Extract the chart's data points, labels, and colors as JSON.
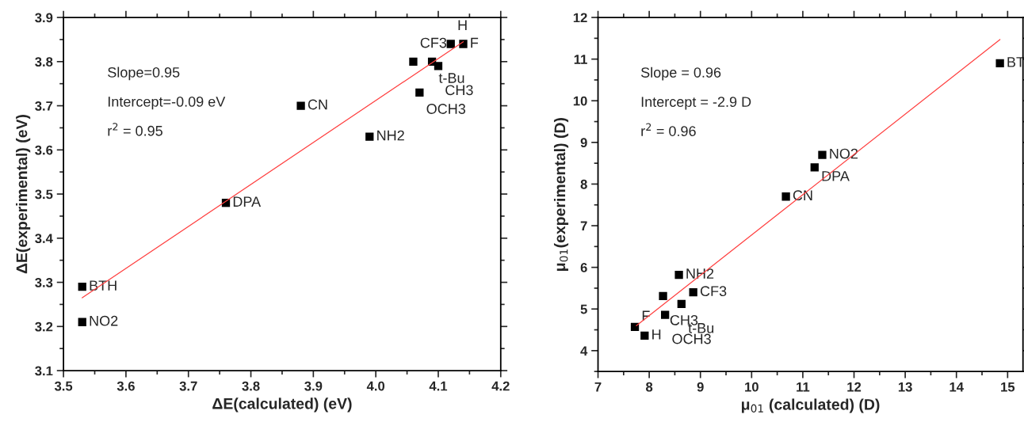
{
  "chart_data": [
    {
      "type": "scatter",
      "xlabel": "ΔE(calculated) (eV)",
      "ylabel": "ΔE(experimental) (eV)",
      "xlim": [
        3.5,
        4.2
      ],
      "ylim": [
        3.1,
        3.9
      ],
      "xticks": [
        3.5,
        3.6,
        3.7,
        3.8,
        3.9,
        {
          "value": 4,
          "label": "4.0"
        },
        4.1,
        4.2
      ],
      "yticks": [
        3.1,
        3.2,
        3.3,
        3.4,
        3.5,
        3.6,
        3.7,
        3.8,
        3.9
      ],
      "grid": false,
      "legend": false,
      "marker": "square",
      "series": [
        {
          "type": "scatter",
          "color": "#000000",
          "x": [
            4.12,
            4.14,
            4.06,
            4.09,
            4.1,
            4.07,
            3.88,
            3.99,
            3.76,
            3.53,
            3.53
          ],
          "values": [
            3.84,
            3.84,
            3.8,
            3.8,
            3.79,
            3.73,
            3.7,
            3.63,
            3.48,
            3.29,
            3.21
          ]
        },
        {
          "type": "line",
          "color": "#ff4040",
          "x": [
            3.53,
            4.14
          ],
          "values": [
            3.265,
            3.845
          ],
          "marker": "none"
        }
      ],
      "annotations": [
        {
          "text": "H",
          "x": 4.12,
          "y": 3.84
        },
        {
          "text": "F",
          "x": 4.14,
          "y": 3.84
        },
        {
          "text": "CF3",
          "x": 4.06,
          "y": 3.8
        },
        {
          "text": "t-Bu",
          "x": 4.09,
          "y": 3.8
        },
        {
          "text": "CH3",
          "x": 4.1,
          "y": 3.79
        },
        {
          "text": "OCH3",
          "x": 4.07,
          "y": 3.73
        },
        {
          "text": "CN",
          "x": 3.88,
          "y": 3.7
        },
        {
          "text": "NH2",
          "x": 3.99,
          "y": 3.63
        },
        {
          "text": "DPA",
          "x": 3.76,
          "y": 3.48
        },
        {
          "text": "BTH",
          "x": 3.53,
          "y": 3.29
        },
        {
          "text": "NO2",
          "x": 3.53,
          "y": 3.21
        },
        "Slope=0.95",
        "Intercept=-0.09 eV",
        "r$^{2}$ = 0.95"
      ]
    },
    {
      "type": "scatter",
      "xlabel": "μ$_{01}$ (calculated) (D)",
      "ylabel": "μ$_{01}$(experimental) (D)",
      "xlim": [
        7,
        15.3
      ],
      "ylim": [
        3.5,
        12
      ],
      "xticks": [
        7,
        8,
        9,
        10,
        11,
        12,
        13,
        14,
        15
      ],
      "yticks": [
        4,
        5,
        6,
        7,
        8,
        9,
        10,
        11,
        12
      ],
      "grid": false,
      "legend": false,
      "marker": "square",
      "series": [
        {
          "type": "scatter",
          "color": "#000000",
          "x": [
            14.85,
            11.38,
            11.23,
            10.67,
            8.58,
            8.86,
            8.27,
            8.63,
            8.31,
            7.72,
            7.91
          ],
          "values": [
            10.9,
            8.7,
            8.4,
            7.7,
            5.82,
            5.4,
            5.31,
            5.12,
            4.86,
            4.57,
            4.36
          ]
        },
        {
          "type": "line",
          "color": "#ff4040",
          "x": [
            7.75,
            14.85
          ],
          "values": [
            4.6,
            11.47
          ],
          "marker": "none"
        }
      ],
      "annotations": [
        {
          "text": "BT",
          "x": 14.85,
          "y": 10.9
        },
        {
          "text": "NO2",
          "x": 11.38,
          "y": 8.7
        },
        {
          "text": "DPA",
          "x": 11.23,
          "y": 8.4
        },
        {
          "text": "CN",
          "x": 10.67,
          "y": 7.7
        },
        {
          "text": "NH2",
          "x": 8.58,
          "y": 5.82
        },
        {
          "text": "CF3",
          "x": 8.86,
          "y": 5.4
        },
        {
          "text": "CH3",
          "x": 8.27,
          "y": 5.31
        },
        {
          "text": "t-Bu",
          "x": 8.63,
          "y": 5.12
        },
        {
          "text": "OCH3",
          "x": 8.31,
          "y": 4.86
        },
        {
          "text": "F",
          "x": 7.72,
          "y": 4.57
        },
        {
          "text": "H",
          "x": 7.91,
          "y": 4.36
        },
        "Slope = 0.96",
        "Intercept = -2.9 D",
        "r$^{2}$ = 0.96"
      ]
    }
  ]
}
